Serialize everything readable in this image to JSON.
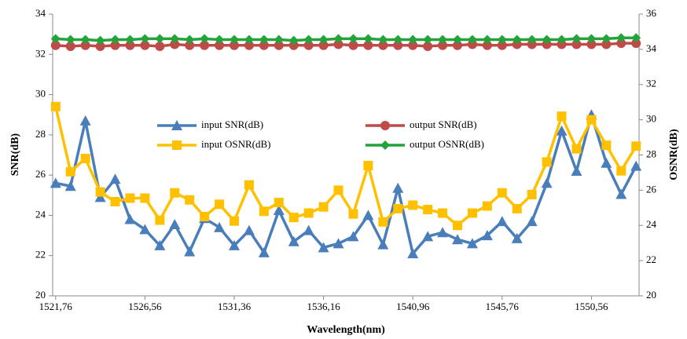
{
  "chart_data": {
    "type": "line",
    "x_label": "Wavelength(nm)",
    "y_label": "SNR(dB)",
    "y2_label": "OSNR(dB)",
    "x": [
      1521.76,
      1522.56,
      1523.36,
      1524.16,
      1524.96,
      1525.76,
      1526.56,
      1527.36,
      1528.16,
      1528.96,
      1529.76,
      1530.56,
      1531.36,
      1532.16,
      1532.96,
      1533.76,
      1534.56,
      1535.36,
      1536.16,
      1536.96,
      1537.76,
      1538.56,
      1539.36,
      1540.16,
      1540.96,
      1541.76,
      1542.56,
      1543.36,
      1544.16,
      1544.96,
      1545.76,
      1546.56,
      1547.36,
      1548.16,
      1548.96,
      1549.76,
      1550.56,
      1551.36,
      1552.16,
      1552.96
    ],
    "xlim": [
      1521.6,
      1553.12
    ],
    "xticks": [
      {
        "value": 1521.76,
        "label": "1521,76"
      },
      {
        "value": 1526.56,
        "label": "1526,56"
      },
      {
        "value": 1531.36,
        "label": "1531,36"
      },
      {
        "value": 1536.16,
        "label": "1536,16"
      },
      {
        "value": 1540.96,
        "label": "1540,96"
      },
      {
        "value": 1545.76,
        "label": "1545,76"
      },
      {
        "value": 1550.56,
        "label": "1550,56"
      }
    ],
    "ylim": [
      20,
      34
    ],
    "yticks": [
      20,
      22,
      24,
      26,
      28,
      30,
      32,
      34
    ],
    "y2lim": [
      20,
      36
    ],
    "y2ticks": [
      20,
      22,
      24,
      26,
      28,
      30,
      32,
      34,
      36
    ],
    "grid": false,
    "legend": "center",
    "series": [
      {
        "name": "input SNR(dB)",
        "color": "#4a7ebb",
        "marker": "triangle",
        "values": [
          25.6,
          25.45,
          28.7,
          24.9,
          25.8,
          23.8,
          23.3,
          22.5,
          23.55,
          22.2,
          23.85,
          23.4,
          22.5,
          23.25,
          22.15,
          24.25,
          22.7,
          23.25,
          22.4,
          22.6,
          22.95,
          24.0,
          22.55,
          25.35,
          22.1,
          22.95,
          23.15,
          22.8,
          22.6,
          23.0,
          23.7,
          22.85,
          23.7,
          25.6,
          28.2,
          26.2,
          29.0,
          26.6,
          25.05,
          26.45
        ]
      },
      {
        "name": "output SNR(dB)",
        "color": "#be4b48",
        "marker": "circle",
        "values": [
          32.45,
          32.4,
          32.45,
          32.4,
          32.45,
          32.45,
          32.45,
          32.4,
          32.5,
          32.45,
          32.45,
          32.45,
          32.45,
          32.45,
          32.45,
          32.45,
          32.45,
          32.45,
          32.45,
          32.5,
          32.45,
          32.45,
          32.45,
          32.45,
          32.45,
          32.4,
          32.45,
          32.45,
          32.5,
          32.45,
          32.45,
          32.5,
          32.5,
          32.5,
          32.5,
          32.5,
          32.5,
          32.5,
          32.55,
          32.55
        ]
      },
      {
        "name": "input OSNR(dB)",
        "color": "#ffc000",
        "marker": "square",
        "axis": "y2",
        "values": [
          30.75,
          27.05,
          27.8,
          25.9,
          25.35,
          25.55,
          25.55,
          24.3,
          25.85,
          25.45,
          24.5,
          25.2,
          24.25,
          26.3,
          24.8,
          25.3,
          24.45,
          24.7,
          25.05,
          26.0,
          24.65,
          27.4,
          24.2,
          24.95,
          25.15,
          24.9,
          24.7,
          24.0,
          24.7,
          25.1,
          25.85,
          24.95,
          25.75,
          27.6,
          30.2,
          28.35,
          30.0,
          28.55,
          27.1,
          28.5
        ]
      },
      {
        "name": "output OSNR(dB)",
        "color": "#23a33a",
        "marker": "diamond",
        "axis": "y2",
        "values": [
          34.6,
          34.55,
          34.55,
          34.5,
          34.55,
          34.55,
          34.6,
          34.6,
          34.6,
          34.55,
          34.6,
          34.55,
          34.55,
          34.55,
          34.55,
          34.55,
          34.5,
          34.55,
          34.55,
          34.6,
          34.6,
          34.6,
          34.55,
          34.55,
          34.55,
          34.55,
          34.55,
          34.55,
          34.55,
          34.55,
          34.55,
          34.55,
          34.55,
          34.55,
          34.55,
          34.6,
          34.6,
          34.6,
          34.65,
          34.65
        ]
      }
    ]
  }
}
